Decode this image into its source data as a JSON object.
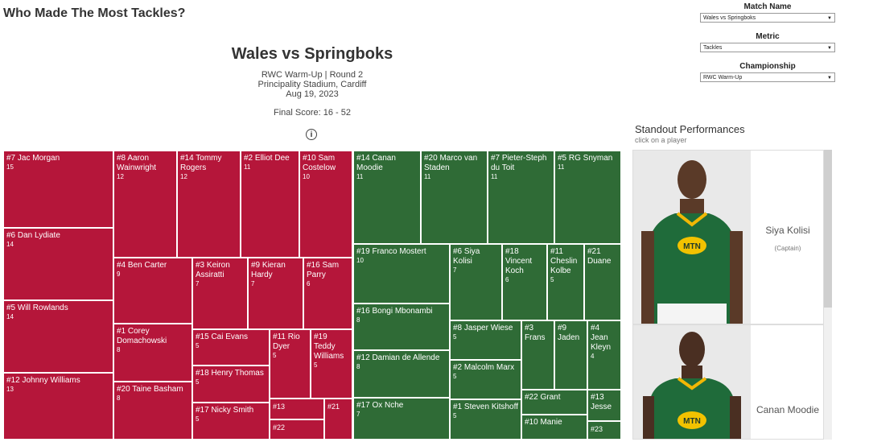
{
  "header": {
    "title": "Who Made The Most Tackles?"
  },
  "filters": [
    {
      "label": "Match Name",
      "value": "Wales vs Springboks"
    },
    {
      "label": "Metric",
      "value": "Tackles"
    },
    {
      "label": "Championship",
      "value": "RWC Warm-Up"
    }
  ],
  "match": {
    "title": "Wales vs Springboks",
    "competition": "RWC Warm-Up | Round 2",
    "venue": "Principality Stadium, Cardiff",
    "date": "Aug 19, 2023",
    "score": "Final Score: 16 - 52",
    "info_symbol": "i"
  },
  "treemap": {
    "wales": [
      {
        "name": "#7 Jac Morgan",
        "value": "15"
      },
      {
        "name": "#6 Dan Lydiate",
        "value": "14"
      },
      {
        "name": "#5 Will Rowlands",
        "value": "14"
      },
      {
        "name": "#12 Johnny Williams",
        "value": "13"
      },
      {
        "name": "#8 Aaron Wainwright",
        "value": "12"
      },
      {
        "name": "#14 Tommy Rogers",
        "value": "12"
      },
      {
        "name": "#2 Elliot Dee",
        "value": "11"
      },
      {
        "name": "#10 Sam Costelow",
        "value": "10"
      },
      {
        "name": "#4 Ben Carter",
        "value": "9"
      },
      {
        "name": "#3 Keiron Assiratti",
        "value": "7"
      },
      {
        "name": "#9 Kieran Hardy",
        "value": "7"
      },
      {
        "name": "#16 Sam Parry",
        "value": "6"
      },
      {
        "name": "#1 Corey Domachowski",
        "value": "8"
      },
      {
        "name": "#20 Taine Basham",
        "value": "8"
      },
      {
        "name": "#15 Cai Evans",
        "value": "5"
      },
      {
        "name": "#11 Rio Dyer",
        "value": "5"
      },
      {
        "name": "#19 Teddy Williams",
        "value": "5"
      },
      {
        "name": "#18 Henry Thomas",
        "value": "5"
      },
      {
        "name": "#17 Nicky Smith",
        "value": "5"
      },
      {
        "name": "#13",
        "value": ""
      },
      {
        "name": "#21",
        "value": ""
      },
      {
        "name": "#22",
        "value": ""
      }
    ],
    "springboks": [
      {
        "name": "#14 Canan Moodie",
        "value": "11"
      },
      {
        "name": "#20 Marco van Staden",
        "value": "11"
      },
      {
        "name": "#7 Pieter-Steph du Toit",
        "value": "11"
      },
      {
        "name": "#5 RG Snyman",
        "value": "11"
      },
      {
        "name": "#19 Franco Mostert",
        "value": "10"
      },
      {
        "name": "#6 Siya Kolisi",
        "value": "7"
      },
      {
        "name": "#18 Vincent Koch",
        "value": "6"
      },
      {
        "name": "#11 Cheslin Kolbe",
        "value": "5"
      },
      {
        "name": "#21 Duane",
        "value": ""
      },
      {
        "name": "#16 Bongi Mbonambi",
        "value": "8"
      },
      {
        "name": "#12 Damian de Allende",
        "value": "8"
      },
      {
        "name": "#17 Ox Nche",
        "value": "7"
      },
      {
        "name": "#8 Jasper Wiese",
        "value": "5"
      },
      {
        "name": "#3 Frans",
        "value": ""
      },
      {
        "name": "#9 Jaden",
        "value": ""
      },
      {
        "name": "#4 Jean Kleyn",
        "value": "4"
      },
      {
        "name": "#2 Malcolm Marx",
        "value": "5"
      },
      {
        "name": "#1 Steven Kitshoff",
        "value": "5"
      },
      {
        "name": "#22 Grant",
        "value": ""
      },
      {
        "name": "#13 Jesse",
        "value": ""
      },
      {
        "name": "#10 Manie",
        "value": ""
      },
      {
        "name": "#23",
        "value": ""
      }
    ]
  },
  "standout": {
    "title": "Standout Performances",
    "subtitle": "click on a player",
    "players": [
      {
        "name": "Siya Kolisi",
        "note": "(Captain)",
        "shirt_text": "MTN"
      },
      {
        "name": "Canan Moodie",
        "note": "",
        "shirt_text": "MTN"
      }
    ]
  },
  "colors": {
    "wales": "#b5163a",
    "springboks": "#2f6b36"
  }
}
